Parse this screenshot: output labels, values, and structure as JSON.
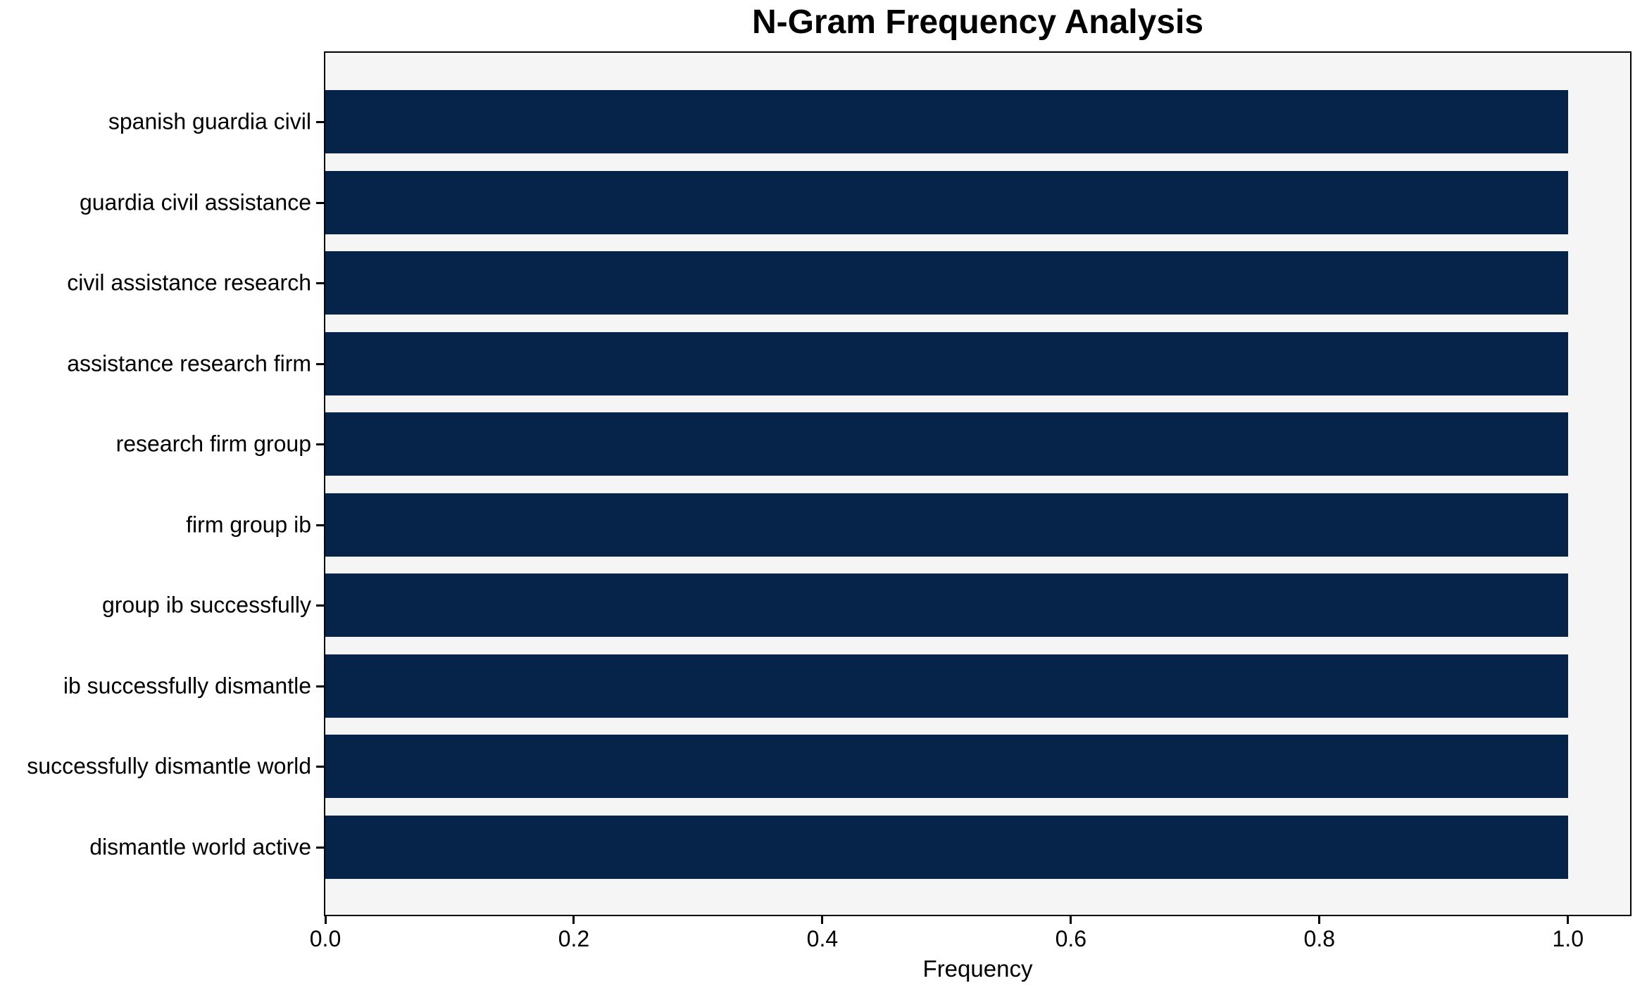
{
  "chart_data": {
    "type": "bar",
    "orientation": "horizontal",
    "title": "N-Gram Frequency Analysis",
    "xlabel": "Frequency",
    "ylabel": "",
    "categories": [
      "spanish guardia civil",
      "guardia civil assistance",
      "civil assistance research",
      "assistance research firm",
      "research firm group",
      "firm group ib",
      "group ib successfully",
      "ib successfully dismantle",
      "successfully dismantle world",
      "dismantle world active"
    ],
    "values": [
      1.0,
      1.0,
      1.0,
      1.0,
      1.0,
      1.0,
      1.0,
      1.0,
      1.0,
      1.0
    ],
    "x_ticks": [
      0.0,
      0.2,
      0.4,
      0.6,
      0.8,
      1.0
    ],
    "x_tick_labels": [
      "0.0",
      "0.2",
      "0.4",
      "0.6",
      "0.8",
      "1.0"
    ],
    "xlim": [
      0,
      1.05
    ],
    "grid": false,
    "legend": null,
    "colors": {
      "bar": "#062449",
      "plot_background": "#f5f5f5",
      "figure_background": "#ffffff",
      "spine": "#000000",
      "text": "#000000"
    }
  }
}
